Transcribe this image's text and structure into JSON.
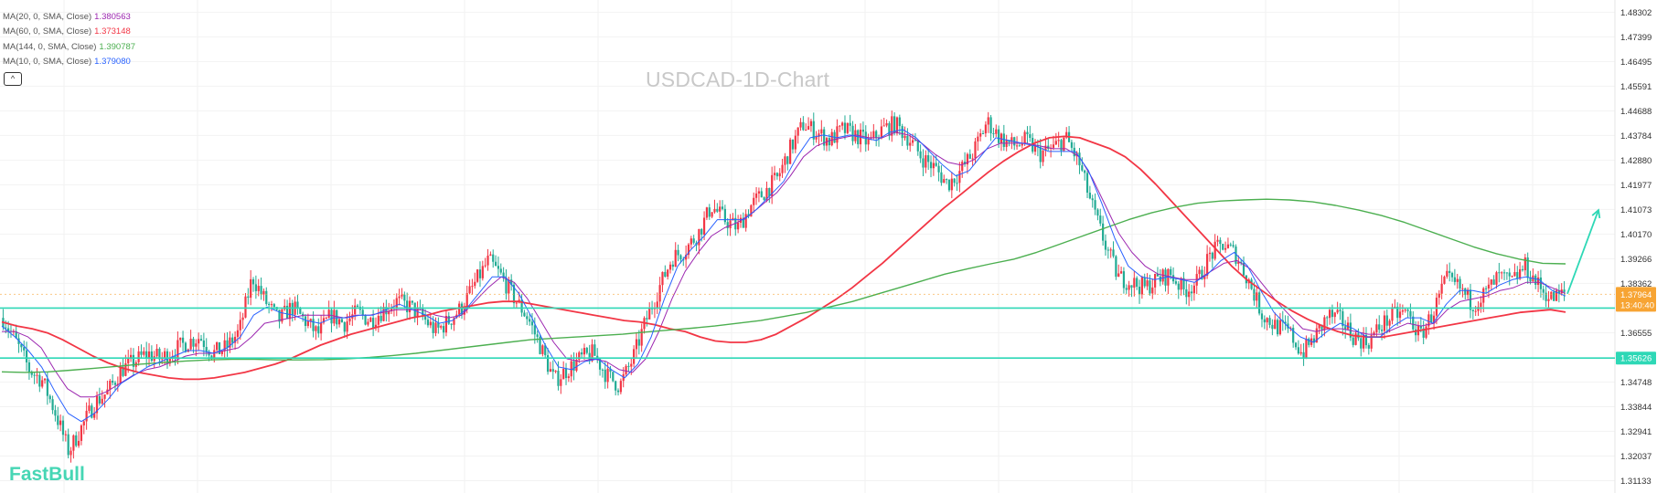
{
  "watermark": "USDCAD-1D-Chart",
  "logo": "FastBull",
  "collapse_glyph": "^",
  "legend": [
    {
      "label": "MA(20, 0, SMA, Close)",
      "value": "1.380563",
      "color": "#9c27b0"
    },
    {
      "label": "MA(60, 0, SMA, Close)",
      "value": "1.373148",
      "color": "#f23645"
    },
    {
      "label": "MA(144, 0, SMA, Close)",
      "value": "1.390787",
      "color": "#4caf50"
    },
    {
      "label": "MA(10, 0, SMA, Close)",
      "value": "1.379080",
      "color": "#2962ff"
    }
  ],
  "colors": {
    "up": "#f23645",
    "down": "#22ab94",
    "level": "#2ed8b6",
    "current": "#f7a433",
    "grid": "#f2f2f2"
  },
  "chart_data": {
    "type": "line",
    "title": "USDCAD-1D-Chart",
    "y_ticks": [
      "1.48302",
      "1.47399",
      "1.46495",
      "1.45591",
      "1.44688",
      "1.43784",
      "1.42880",
      "1.41977",
      "1.41073",
      "1.40170",
      "1.39266",
      "1.38362",
      "1.37964",
      "1.36555",
      "1.35626",
      "1.34748",
      "1.33844",
      "1.32941",
      "1.32037",
      "1.31133"
    ],
    "ylim": [
      1.3068,
      1.4875
    ],
    "current_price": {
      "value": 1.37964,
      "label": "1.37964",
      "countdown": "13:40:40"
    },
    "horizontal_levels": [
      {
        "value": 1.3746
      },
      {
        "value": 1.35626,
        "label": "1.35626"
      }
    ],
    "price_path": [
      1.371,
      1.362,
      1.352,
      1.348,
      1.336,
      1.322,
      1.331,
      1.34,
      1.344,
      1.352,
      1.355,
      1.358,
      1.356,
      1.359,
      1.362,
      1.364,
      1.358,
      1.36,
      1.366,
      1.386,
      1.377,
      1.37,
      1.375,
      1.37,
      1.365,
      1.372,
      1.369,
      1.373,
      1.37,
      1.374,
      1.377,
      1.375,
      1.371,
      1.366,
      1.37,
      1.375,
      1.384,
      1.392,
      1.386,
      1.378,
      1.371,
      1.36,
      1.348,
      1.352,
      1.356,
      1.358,
      1.35,
      1.346,
      1.356,
      1.37,
      1.382,
      1.393,
      1.396,
      1.402,
      1.412,
      1.407,
      1.404,
      1.412,
      1.417,
      1.422,
      1.433,
      1.442,
      1.439,
      1.436,
      1.44,
      1.438,
      1.435,
      1.44,
      1.442,
      1.437,
      1.43,
      1.426,
      1.42,
      1.425,
      1.432,
      1.443,
      1.437,
      1.434,
      1.436,
      1.431,
      1.433,
      1.437,
      1.428,
      1.412,
      1.398,
      1.386,
      1.384,
      1.382,
      1.385,
      1.387,
      1.381,
      1.384,
      1.394,
      1.398,
      1.394,
      1.384,
      1.372,
      1.368,
      1.366,
      1.358,
      1.364,
      1.372,
      1.37,
      1.364,
      1.362,
      1.368,
      1.372,
      1.373,
      1.364,
      1.373,
      1.385,
      1.382,
      1.376,
      1.38,
      1.386,
      1.384,
      1.39,
      1.383,
      1.378,
      1.38
    ],
    "series": [
      {
        "name": "MA(20, 0, SMA, Close)",
        "color": "#9c27b0",
        "values": [
          1.366,
          1.366,
          1.364,
          1.36,
          1.352,
          1.345,
          1.342,
          1.342,
          1.344,
          1.347,
          1.35,
          1.352,
          1.353,
          1.355,
          1.357,
          1.358,
          1.358,
          1.359,
          1.36,
          1.364,
          1.369,
          1.37,
          1.371,
          1.372,
          1.372,
          1.372,
          1.371,
          1.372,
          1.372,
          1.373,
          1.374,
          1.374,
          1.374,
          1.372,
          1.371,
          1.372,
          1.377,
          1.382,
          1.386,
          1.384,
          1.378,
          1.37,
          1.362,
          1.356,
          1.355,
          1.356,
          1.355,
          1.352,
          1.351,
          1.356,
          1.366,
          1.378,
          1.388,
          1.395,
          1.401,
          1.404,
          1.406,
          1.409,
          1.413,
          1.417,
          1.423,
          1.43,
          1.434,
          1.436,
          1.437,
          1.438,
          1.437,
          1.437,
          1.439,
          1.438,
          1.435,
          1.431,
          1.428,
          1.427,
          1.429,
          1.433,
          1.435,
          1.435,
          1.435,
          1.434,
          1.433,
          1.433,
          1.43,
          1.422,
          1.412,
          1.402,
          1.395,
          1.39,
          1.387,
          1.386,
          1.385,
          1.385,
          1.388,
          1.391,
          1.392,
          1.389,
          1.383,
          1.377,
          1.372,
          1.367,
          1.366,
          1.367,
          1.367,
          1.366,
          1.365,
          1.365,
          1.367,
          1.369,
          1.368,
          1.369,
          1.374,
          1.377,
          1.378,
          1.379,
          1.381,
          1.382,
          1.384,
          1.384,
          1.382,
          1.38
        ]
      },
      {
        "name": "MA(60, 0, SMA, Close)",
        "color": "#f23645",
        "values": [
          1.3695,
          1.368,
          1.367,
          1.3655,
          1.363,
          1.36,
          1.357,
          1.3545,
          1.3525,
          1.351,
          1.35,
          1.349,
          1.3485,
          1.3485,
          1.349,
          1.35,
          1.351,
          1.3525,
          1.354,
          1.356,
          1.3585,
          1.361,
          1.363,
          1.365,
          1.3665,
          1.368,
          1.3695,
          1.371,
          1.372,
          1.3735,
          1.3745,
          1.3755,
          1.3765,
          1.377,
          1.377,
          1.376,
          1.375,
          1.374,
          1.373,
          1.372,
          1.371,
          1.37,
          1.3695,
          1.3685,
          1.367,
          1.366,
          1.364,
          1.3625,
          1.362,
          1.362,
          1.363,
          1.365,
          1.368,
          1.371,
          1.3745,
          1.378,
          1.382,
          1.3865,
          1.391,
          1.396,
          1.401,
          1.406,
          1.411,
          1.4155,
          1.42,
          1.4245,
          1.4285,
          1.432,
          1.435,
          1.437,
          1.4375,
          1.437,
          1.435,
          1.433,
          1.43,
          1.4255,
          1.42,
          1.414,
          1.408,
          1.402,
          1.396,
          1.39,
          1.385,
          1.381,
          1.377,
          1.3735,
          1.3705,
          1.368,
          1.366,
          1.3645,
          1.364,
          1.364,
          1.365,
          1.366,
          1.367,
          1.368,
          1.369,
          1.37,
          1.371,
          1.372,
          1.373,
          1.3735,
          1.374,
          1.3731
        ]
      },
      {
        "name": "MA(144, 0, SMA, Close)",
        "color": "#4caf50",
        "values": [
          1.3512,
          1.351,
          1.3512,
          1.3518,
          1.3525,
          1.3532,
          1.354,
          1.3546,
          1.3552,
          1.3556,
          1.3558,
          1.3558,
          1.3556,
          1.3556,
          1.3557,
          1.356,
          1.3565,
          1.3572,
          1.358,
          1.359,
          1.36,
          1.361,
          1.362,
          1.363,
          1.3635,
          1.364,
          1.3645,
          1.365,
          1.3658,
          1.3665,
          1.3672,
          1.368,
          1.369,
          1.37,
          1.3715,
          1.373,
          1.375,
          1.377,
          1.3795,
          1.382,
          1.3845,
          1.387,
          1.389,
          1.3908,
          1.3925,
          1.395,
          1.398,
          1.401,
          1.404,
          1.407,
          1.4095,
          1.4115,
          1.413,
          1.4138,
          1.4142,
          1.4145,
          1.4142,
          1.4135,
          1.4122,
          1.4105,
          1.4085,
          1.406,
          1.403,
          1.4,
          1.397,
          1.3945,
          1.3925,
          1.391,
          1.3908
        ]
      },
      {
        "name": "MA(10, 0, SMA, Close)",
        "color": "#2962ff",
        "values": [
          1.368,
          1.364,
          1.359,
          1.353,
          1.344,
          1.336,
          1.333,
          1.336,
          1.341,
          1.347,
          1.35,
          1.353,
          1.355,
          1.357,
          1.359,
          1.359,
          1.358,
          1.36,
          1.364,
          1.372,
          1.375,
          1.373,
          1.372,
          1.37,
          1.369,
          1.371,
          1.371,
          1.372,
          1.372,
          1.374,
          1.376,
          1.374,
          1.372,
          1.369,
          1.37,
          1.374,
          1.38,
          1.386,
          1.386,
          1.38,
          1.371,
          1.361,
          1.353,
          1.352,
          1.355,
          1.356,
          1.352,
          1.349,
          1.354,
          1.364,
          1.378,
          1.39,
          1.396,
          1.401,
          1.407,
          1.407,
          1.407,
          1.411,
          1.416,
          1.421,
          1.43,
          1.437,
          1.438,
          1.437,
          1.438,
          1.437,
          1.436,
          1.439,
          1.44,
          1.437,
          1.432,
          1.427,
          1.423,
          1.425,
          1.431,
          1.437,
          1.436,
          1.435,
          1.434,
          1.432,
          1.432,
          1.432,
          1.425,
          1.413,
          1.4,
          1.39,
          1.386,
          1.385,
          1.386,
          1.385,
          1.384,
          1.387,
          1.392,
          1.395,
          1.39,
          1.381,
          1.373,
          1.368,
          1.364,
          1.362,
          1.366,
          1.369,
          1.367,
          1.364,
          1.364,
          1.368,
          1.371,
          1.371,
          1.369,
          1.376,
          1.381,
          1.381,
          1.38,
          1.383,
          1.385,
          1.386,
          1.385,
          1.381,
          1.379
        ]
      }
    ],
    "forecast_arrow": {
      "from": 1.3798,
      "to": 1.4105
    }
  }
}
